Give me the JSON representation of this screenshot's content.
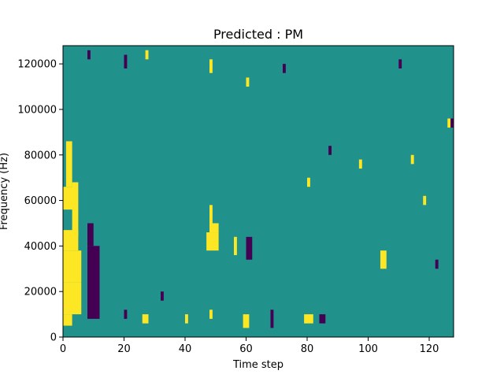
{
  "chart_data": {
    "type": "heatmap",
    "title": "Predicted : PM",
    "xlabel": "Time step",
    "ylabel": "Frequency (Hz)",
    "xlim": [
      0,
      128
    ],
    "ylim": [
      0,
      128000
    ],
    "xticks": [
      0,
      20,
      40,
      60,
      80,
      100,
      120
    ],
    "yticks": [
      0,
      20000,
      40000,
      60000,
      80000,
      100000,
      120000
    ],
    "colormap": {
      "low": "#440154",
      "mid": "#21918c",
      "high": "#fde725"
    },
    "background_value": "mid",
    "rows": 64,
    "cols": 128,
    "cell_height_hz": 2000,
    "cells": [
      {
        "x": 0,
        "y": 5000,
        "w": 3,
        "h": 5000,
        "value": "high"
      },
      {
        "x": 0,
        "y": 10000,
        "w": 6,
        "h": 14000,
        "value": "high"
      },
      {
        "x": 0,
        "y": 24000,
        "w": 6,
        "h": 14000,
        "value": "high"
      },
      {
        "x": 0,
        "y": 38000,
        "w": 5,
        "h": 9000,
        "value": "high"
      },
      {
        "x": 0,
        "y": 56000,
        "w": 4,
        "h": 10000,
        "value": "high"
      },
      {
        "x": 1,
        "y": 66000,
        "w": 2,
        "h": 20000,
        "value": "high"
      },
      {
        "x": 3,
        "y": 44000,
        "w": 2,
        "h": 24000,
        "value": "high"
      },
      {
        "x": 8,
        "y": 8000,
        "w": 4,
        "h": 32000,
        "value": "low"
      },
      {
        "x": 10,
        "y": 30000,
        "w": 2,
        "h": 10000,
        "value": "low"
      },
      {
        "x": 8,
        "y": 40000,
        "w": 2,
        "h": 10000,
        "value": "low"
      },
      {
        "x": 20,
        "y": 8000,
        "w": 1,
        "h": 4000,
        "value": "low"
      },
      {
        "x": 26,
        "y": 6000,
        "w": 2,
        "h": 4000,
        "value": "high"
      },
      {
        "x": 32,
        "y": 16000,
        "w": 1,
        "h": 4000,
        "value": "low"
      },
      {
        "x": 40,
        "y": 6000,
        "w": 1,
        "h": 4000,
        "value": "high"
      },
      {
        "x": 47,
        "y": 38000,
        "w": 4,
        "h": 8000,
        "value": "high"
      },
      {
        "x": 48,
        "y": 46000,
        "w": 3,
        "h": 4000,
        "value": "high"
      },
      {
        "x": 48,
        "y": 8000,
        "w": 1,
        "h": 4000,
        "value": "high"
      },
      {
        "x": 48,
        "y": 50000,
        "w": 1,
        "h": 8000,
        "value": "high"
      },
      {
        "x": 56,
        "y": 36000,
        "w": 1,
        "h": 8000,
        "value": "high"
      },
      {
        "x": 60,
        "y": 34000,
        "w": 2,
        "h": 10000,
        "value": "low"
      },
      {
        "x": 59,
        "y": 4000,
        "w": 2,
        "h": 6000,
        "value": "high"
      },
      {
        "x": 68,
        "y": 4000,
        "w": 1,
        "h": 8000,
        "value": "low"
      },
      {
        "x": 79,
        "y": 6000,
        "w": 3,
        "h": 4000,
        "value": "high"
      },
      {
        "x": 84,
        "y": 6000,
        "w": 2,
        "h": 4000,
        "value": "low"
      },
      {
        "x": 104,
        "y": 30000,
        "w": 2,
        "h": 8000,
        "value": "high"
      },
      {
        "x": 8,
        "y": 122000,
        "w": 1,
        "h": 4000,
        "value": "low"
      },
      {
        "x": 20,
        "y": 118000,
        "w": 1,
        "h": 6000,
        "value": "low"
      },
      {
        "x": 27,
        "y": 122000,
        "w": 1,
        "h": 4000,
        "value": "high"
      },
      {
        "x": 48,
        "y": 116000,
        "w": 1,
        "h": 6000,
        "value": "high"
      },
      {
        "x": 60,
        "y": 110000,
        "w": 1,
        "h": 4000,
        "value": "high"
      },
      {
        "x": 72,
        "y": 116000,
        "w": 1,
        "h": 4000,
        "value": "low"
      },
      {
        "x": 80,
        "y": 66000,
        "w": 1,
        "h": 4000,
        "value": "high"
      },
      {
        "x": 87,
        "y": 80000,
        "w": 1,
        "h": 4000,
        "value": "low"
      },
      {
        "x": 97,
        "y": 74000,
        "w": 1,
        "h": 4000,
        "value": "high"
      },
      {
        "x": 110,
        "y": 118000,
        "w": 1,
        "h": 4000,
        "value": "low"
      },
      {
        "x": 114,
        "y": 76000,
        "w": 1,
        "h": 4000,
        "value": "high"
      },
      {
        "x": 118,
        "y": 58000,
        "w": 1,
        "h": 4000,
        "value": "high"
      },
      {
        "x": 122,
        "y": 30000,
        "w": 1,
        "h": 4000,
        "value": "low"
      },
      {
        "x": 126,
        "y": 92000,
        "w": 1,
        "h": 4000,
        "value": "high"
      },
      {
        "x": 127,
        "y": 92000,
        "w": 1,
        "h": 4000,
        "value": "low"
      }
    ]
  }
}
